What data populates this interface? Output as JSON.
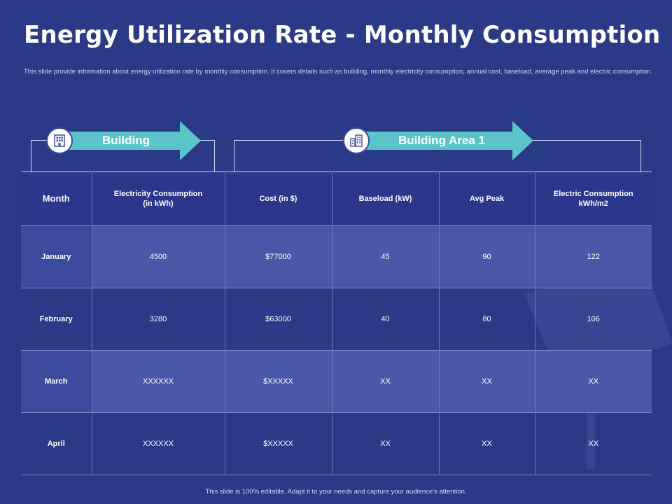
{
  "slide": {
    "title": "Energy Utilization Rate - Monthly Consumption",
    "subtitle": "This slide provide information about energy utilization rate by monthly consumption. It covers details such as building, monthly electricity consumption, annual cost, baseload, average peak and electric consumption.",
    "footer": "This slide is 100% editable. Adapt it to your needs and capture your audience's attention."
  },
  "arrows": {
    "building": {
      "label": "Building",
      "icon": "building-icon"
    },
    "building_area": {
      "label": "Building Area 1",
      "icon": "office-building-icon"
    },
    "arrow_color": "#5bc4c9"
  },
  "table": {
    "headers": [
      "Month",
      "Electricity Consumption  (in kWh)",
      "Cost (in $)",
      "Baseload (kW)",
      "Avg Peak",
      "Electric Consumption kWh/m2"
    ],
    "rows": [
      [
        "January",
        "4500",
        "$77000",
        "45",
        "90",
        "122"
      ],
      [
        "February",
        "3280",
        "$63000",
        "40",
        "80",
        "106"
      ],
      [
        "March",
        "XXXXXX",
        "$XXXXX",
        "XX",
        "XX",
        "XX"
      ],
      [
        "April",
        "XXXXXX",
        "$XXXXX",
        "XX",
        "XX",
        "XX"
      ]
    ]
  },
  "colors": {
    "background": "#2b3a86",
    "row_highlight": "#4a58a8",
    "accent": "#5bc4c9"
  }
}
